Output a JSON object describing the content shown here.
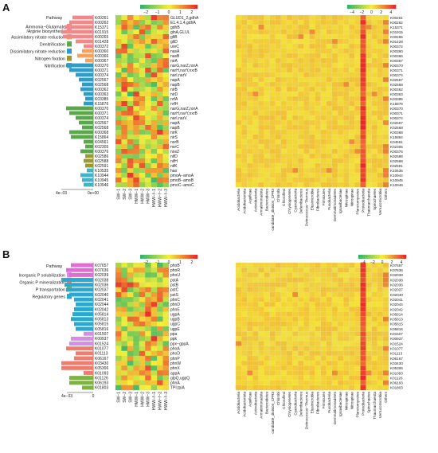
{
  "colors": {
    "heat_low": "#2fb36a",
    "heat_mid": "#f4ef3c",
    "heat_high": "#e8262b",
    "legend_nitrogen": [
      "#f0898a",
      "#f7a25c",
      "#59a84a",
      "#2a9ec9",
      "#9a9a2e",
      "#3db4c8"
    ],
    "legend_phosphorus": [
      "#d98be8",
      "#ee7d6f",
      "#7cb342",
      "#29a8d1",
      "#e36bd6"
    ]
  },
  "chart_data": [
    {
      "panel": "A",
      "type": "heatmap",
      "legend_title": "Pathway",
      "legend": [
        "Ammonia−Glutamate\n/Arginie biosynthesis",
        "Assimilatory nitrate reduction",
        "Denitrification",
        "Dissimilatory nitrate reduction",
        "Nitrogen fixation",
        "Nitrification"
      ],
      "ko_left": [
        "K00261",
        "K00262",
        "K15371",
        "K01915",
        "K00265",
        "K01428",
        "K00372",
        "K00360",
        "K00366",
        "K00367",
        "K00370",
        "K00371",
        "K00374",
        "K02567",
        "K02568",
        "K00362",
        "K00363",
        "K03385",
        "K15876",
        "K00370",
        "K00371",
        "K00374",
        "K02567",
        "K02568",
        "K00368",
        "K15864",
        "K04561",
        "K02305",
        "K00376",
        "K02586",
        "K02588",
        "K02591",
        "K10535",
        "K10944",
        "K10945",
        "K10946"
      ],
      "genes": [
        "GLUD1_2,gdhA",
        "E1.4.1.4,gdhA",
        "gdhB",
        "glnA,GLUL",
        "gltB",
        "gltD",
        "ureC",
        "nasA",
        "nasB",
        "nirA",
        "narG,narZ,nxrA",
        "narH,narY,nxrB",
        "narI,narV",
        "napA",
        "napB",
        "nirB",
        "nirD",
        "nrfA",
        "nrfH",
        "narG,narZ,nxrA",
        "narH,narY,nxrB",
        "narI,narV",
        "napA",
        "napB",
        "nirK",
        "nirS",
        "norB",
        "norC",
        "nosZ",
        "nifD",
        "nifH",
        "nifK",
        "hao",
        "pmoA−amoA",
        "pmoB−amoB",
        "pmoC−amoC"
      ],
      "bar_axis_ticks": [
        "4e−03",
        "0e+00"
      ],
      "samples": [
        "SW−1",
        "SW−2",
        "SW−3",
        "HWW−1",
        "HWW−2",
        "HWW−3",
        "HWW−f−1",
        "HWW−f−2",
        "HWW−f−3"
      ],
      "sample_scale_ticks": [
        "−2",
        "−1",
        "0",
        "1",
        "2"
      ],
      "sample_scale_range": [
        -2.5,
        2.5
      ],
      "taxa": [
        "Acidobacteria",
        "Acidobacteriota",
        "Aquificae",
        "Actinobacteria",
        "Armatimonadota",
        "Bacteroidetes",
        "candidate_division_CPR3",
        "Chlorobi",
        "Chloroflexi",
        "Chrysiogenetes",
        "Cyanobacteria",
        "Deferribacteres",
        "Deinococcus−Thermus",
        "Elusimicrobia",
        "Fibrobacteres",
        "Firmicutes",
        "Fusobacteria",
        "Gemmatimonadetes",
        "Ignavibacteriae",
        "Nitrospinae",
        "Nitrospirae",
        "Planctomycetes",
        "Proteobacteria",
        "Thaumarchaeota",
        "Spirochaetes",
        "Verrucomicrobia",
        "Others"
      ],
      "taxa_scale_ticks": [
        "−4",
        "−2",
        "0",
        "2",
        "4"
      ],
      "taxa_scale_range": [
        -5,
        5
      ],
      "ko_right": [
        "K00261",
        "K00262",
        "K15371",
        "K01915",
        "K00265",
        "K01428",
        "K00372",
        "K00360",
        "K00366",
        "K00367",
        "K00370",
        "K00371",
        "K00374",
        "K02567",
        "K02568",
        "K00362",
        "K00363",
        "K03385",
        "K15876",
        "K00370",
        "K00371",
        "K00374",
        "K02567",
        "K02568",
        "K00368",
        "K15864",
        "K04561",
        "K02305",
        "K00376",
        "K02586",
        "K02588",
        "K02591",
        "K10535",
        "K10944",
        "K10945",
        "K10946"
      ]
    },
    {
      "panel": "B",
      "type": "heatmap",
      "legend_title": "Pathway",
      "legend": [
        "Inorganic P solubilization",
        "Organic P mineralization",
        "P transportation",
        "Regulatory genes"
      ],
      "ko_left": [
        "K07657",
        "K07636",
        "K02039",
        "K02038",
        "K02036",
        "K02037",
        "K02040",
        "K02041",
        "K02044",
        "K02042",
        "K05814",
        "K05813",
        "K05815",
        "K05816",
        "K01507",
        "K00937",
        "K01524",
        "K01077",
        "K01113",
        "K06167",
        "K03430",
        "K05306",
        "K01093",
        "K01126",
        "K06193",
        "K01803"
      ],
      "genes": [
        "phoB",
        "phoR",
        "phoU",
        "pstA",
        "pstB",
        "pstC",
        "pstS",
        "phnC",
        "phnD",
        "phnE",
        "ugpA",
        "ugpB",
        "ugpC",
        "ugpE",
        "ppa",
        "ppk",
        "ppx−gppA",
        "phoA",
        "phoD",
        "phnP",
        "phnW",
        "phnX",
        "appA",
        "glpQ,ugpQ",
        "phnA",
        "TPI,tpiA"
      ],
      "bar_axis_ticks": [
        "4e−03",
        "0"
      ],
      "samples": [
        "SW−1",
        "SW−2",
        "SW−3",
        "HWW−1",
        "HWW−2",
        "HWW−3",
        "HWW−f−1",
        "HWW−f−2",
        "HWW−f−3"
      ],
      "sample_scale_ticks": [
        "−2",
        "−1",
        "0",
        "1",
        "2"
      ],
      "sample_scale_range": [
        -2.5,
        2.5
      ],
      "taxa": [
        "Acidobacteria",
        "Acidobacteriota",
        "Aquificae",
        "Actinobacteria",
        "Armatimonadota",
        "Bacteroidetes",
        "candidate_division_CPR3",
        "Chlorobi",
        "Chloroflexi",
        "Chrysiogenetes",
        "Cyanobacteria",
        "Deferribacteres",
        "Deinococcus−Thermus",
        "Elusimicrobia",
        "Fibrobacteres",
        "Firmicutes",
        "Fusobacteria",
        "Gemmatimonadetes",
        "Ignavibacteriae",
        "Nitrospinae",
        "Nitrospirae",
        "Planctomycetes",
        "Proteobacteria",
        "Spirochaetes",
        "Thaumarchaeota",
        "Verrucomicrobia",
        "Others"
      ],
      "taxa_scale_ticks": [
        "−4",
        "−2",
        "0",
        "2",
        "4"
      ],
      "taxa_scale_range": [
        -5,
        5
      ],
      "ko_right": [
        "K07657",
        "K07636",
        "K02039",
        "K02038",
        "K02036",
        "K02037",
        "K02040",
        "K02041",
        "K02044",
        "K02042",
        "K05814",
        "K05813",
        "K05815",
        "K05816",
        "K01507",
        "K00937",
        "K01524",
        "K01077",
        "K01113",
        "K06167",
        "K03430",
        "K05306",
        "K01093",
        "K01126",
        "K06193",
        "K01803"
      ]
    }
  ],
  "panel_labels": [
    "A",
    "B"
  ]
}
